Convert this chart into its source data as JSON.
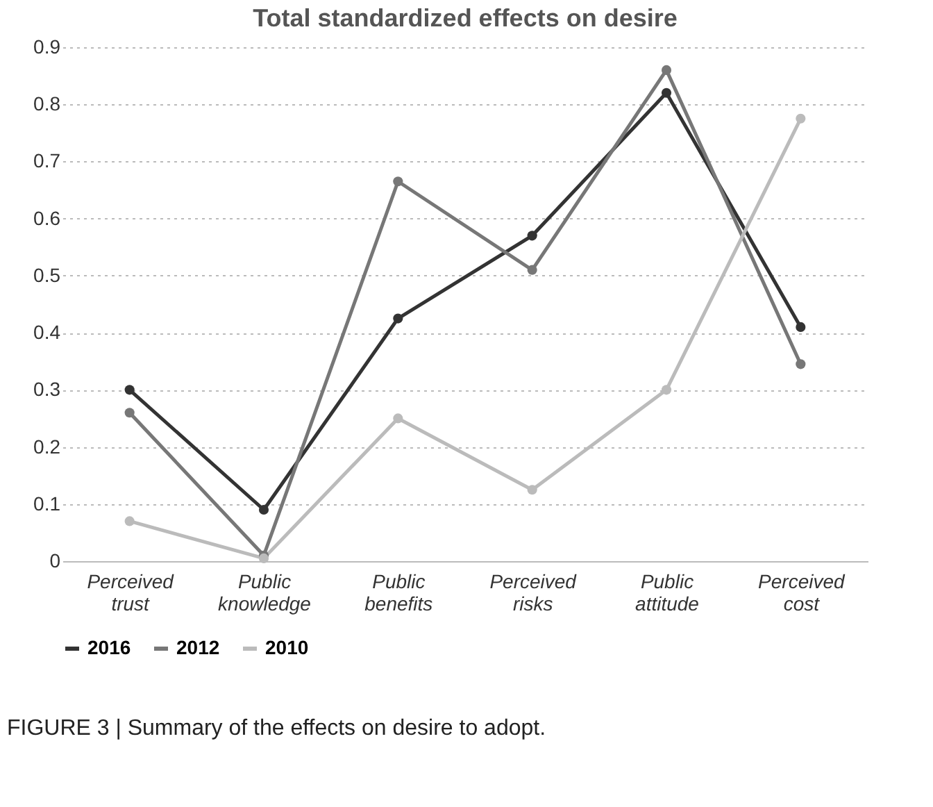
{
  "chart_data": {
    "type": "line",
    "title": "Total standardized effects on desire",
    "categories": [
      "Perceived trust",
      "Public knowledge",
      "Public benefits",
      "Perceived risks",
      "Public attitude",
      "Perceived cost"
    ],
    "series": [
      {
        "name": "2016",
        "color": "#333333",
        "values": [
          0.3,
          0.09,
          0.425,
          0.57,
          0.82,
          0.41
        ]
      },
      {
        "name": "2012",
        "color": "#777777",
        "values": [
          0.26,
          0.01,
          0.665,
          0.51,
          0.86,
          0.345
        ]
      },
      {
        "name": "2010",
        "color": "#bbbbbb",
        "values": [
          0.07,
          0.005,
          0.25,
          0.125,
          0.3,
          0.775
        ]
      }
    ],
    "ylim": [
      0,
      0.9
    ],
    "yticks": [
      0,
      0.1,
      0.2,
      0.3,
      0.4,
      0.5,
      0.6,
      0.7,
      0.8,
      0.9
    ],
    "grid": "y",
    "legend": "bottom",
    "marker": "circle",
    "line_style": "solid",
    "annotations": [
      "FIGURE 3 | Summary of the effects on desire to adopt."
    ]
  }
}
